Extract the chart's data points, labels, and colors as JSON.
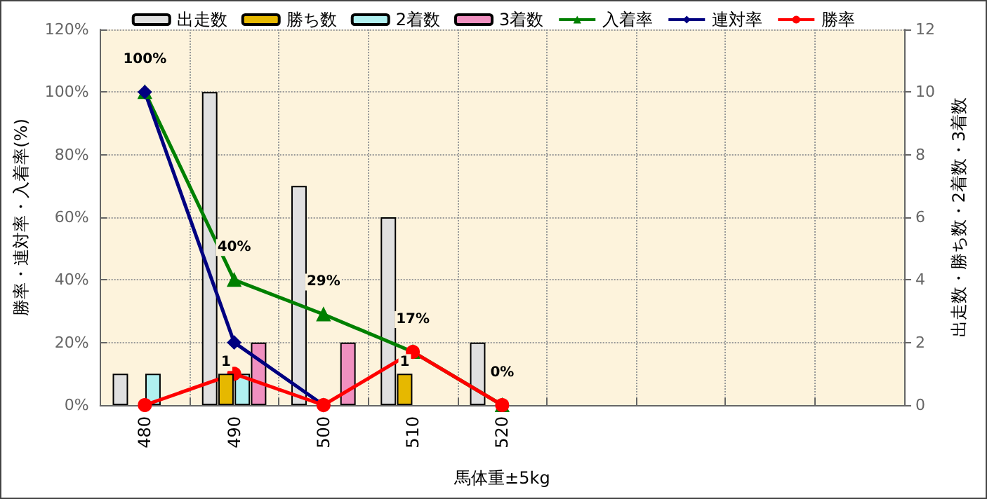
{
  "chart_data": {
    "type": "bar",
    "xlabel": "馬体重±5kg",
    "ylabel": "勝率・連対率・入着率(%)",
    "y2label": "出走数・勝ち数・2着数・3着数",
    "categories": [
      "480",
      "490",
      "500",
      "510",
      "520",
      null,
      null,
      null,
      null
    ],
    "series": [
      {
        "name": "出走数",
        "axis": "y2",
        "color": "#e0e0e0",
        "values": [
          1,
          10,
          7,
          6,
          2,
          null,
          null,
          null,
          null
        ]
      },
      {
        "name": "勝ち数",
        "axis": "y2",
        "color": "#e6b800",
        "values": [
          null,
          1,
          null,
          1,
          null,
          null,
          null,
          null,
          null
        ],
        "value_labels": [
          null,
          "1",
          null,
          "1",
          null,
          null,
          null,
          null,
          null
        ]
      },
      {
        "name": "2着数",
        "axis": "y2",
        "color": "#b0f0f0",
        "values": [
          1,
          1,
          null,
          null,
          null,
          null,
          null,
          null,
          null
        ]
      },
      {
        "name": "3着数",
        "axis": "y2",
        "color": "#f090c0",
        "values": [
          null,
          2,
          2,
          null,
          null,
          null,
          null,
          null,
          null
        ]
      },
      {
        "name": "入着率",
        "type": "line",
        "axis": "y",
        "color": "#008000",
        "marker": "triangle",
        "values": [
          100,
          40,
          29,
          17,
          0,
          null,
          null,
          null,
          null
        ],
        "value_labels": [
          "100%",
          "40%",
          "29%",
          "17%",
          "0%",
          null,
          null,
          null,
          null
        ]
      },
      {
        "name": "連対率",
        "type": "line",
        "axis": "y",
        "color": "#000080",
        "marker": "diamond",
        "values": [
          100,
          20,
          0,
          null,
          null,
          null,
          null,
          null,
          null
        ]
      },
      {
        "name": "勝率",
        "type": "line",
        "axis": "y",
        "color": "#ff0000",
        "marker": "circle",
        "values": [
          0,
          10,
          0,
          17,
          0,
          null,
          null,
          null,
          null
        ]
      }
    ],
    "ylim": [
      0,
      120
    ],
    "yticks": [
      {
        "value": 0,
        "label": "0%"
      },
      {
        "value": 20,
        "label": "20%"
      },
      {
        "value": 40,
        "label": "40%"
      },
      {
        "value": 60,
        "label": "60%"
      },
      {
        "value": 80,
        "label": "80%"
      },
      {
        "value": 100,
        "label": "100%"
      },
      {
        "value": 120,
        "label": "120%"
      }
    ],
    "y2lim": [
      0,
      12
    ],
    "y2ticks": [
      0,
      2,
      4,
      6,
      8,
      10,
      12
    ],
    "grid": true,
    "legend": "top"
  }
}
